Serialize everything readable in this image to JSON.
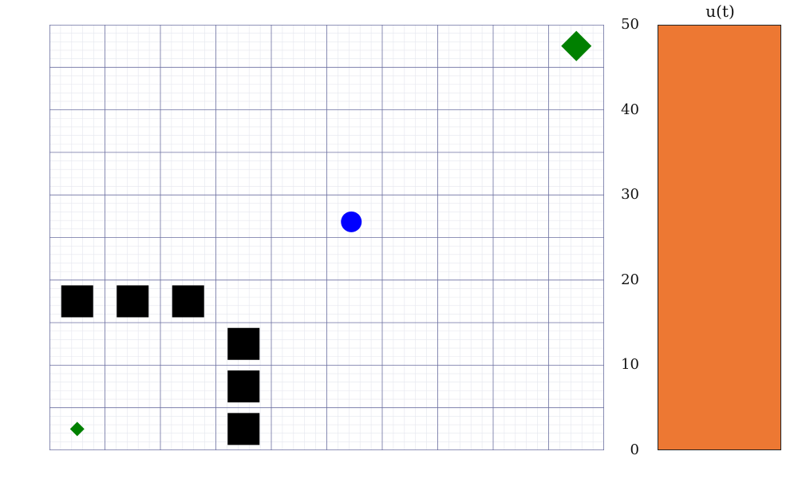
{
  "grid": {
    "cols": 10,
    "rows": 10,
    "minor_per_cell": 5,
    "background": "#ffffff",
    "major_line_color": "#6b6fa0",
    "minor_line_color": "#e4e6ee",
    "agent": {
      "col": 5.5,
      "row": 5.5,
      "color": "#0000ff",
      "icon": "circle-icon"
    },
    "goal": {
      "col": 9.5,
      "row": 9.5,
      "color": "#008000",
      "icon": "diamond-icon"
    },
    "start_marker": {
      "col": 0.5,
      "row": 0.5,
      "color": "#008000",
      "icon": "diamond-icon"
    },
    "obstacles": [
      {
        "col": 0,
        "row": 3
      },
      {
        "col": 1,
        "row": 3
      },
      {
        "col": 2,
        "row": 3
      },
      {
        "col": 3,
        "row": 2
      },
      {
        "col": 3,
        "row": 1
      },
      {
        "col": 3,
        "row": 0
      }
    ],
    "obstacle_color": "#000000"
  },
  "bar_chart": {
    "title": "u(t)",
    "value": 50,
    "ylim": [
      0,
      50
    ],
    "ticks": [
      "0",
      "10",
      "20",
      "30",
      "40",
      "50"
    ],
    "bar_color": "#ed7833"
  }
}
